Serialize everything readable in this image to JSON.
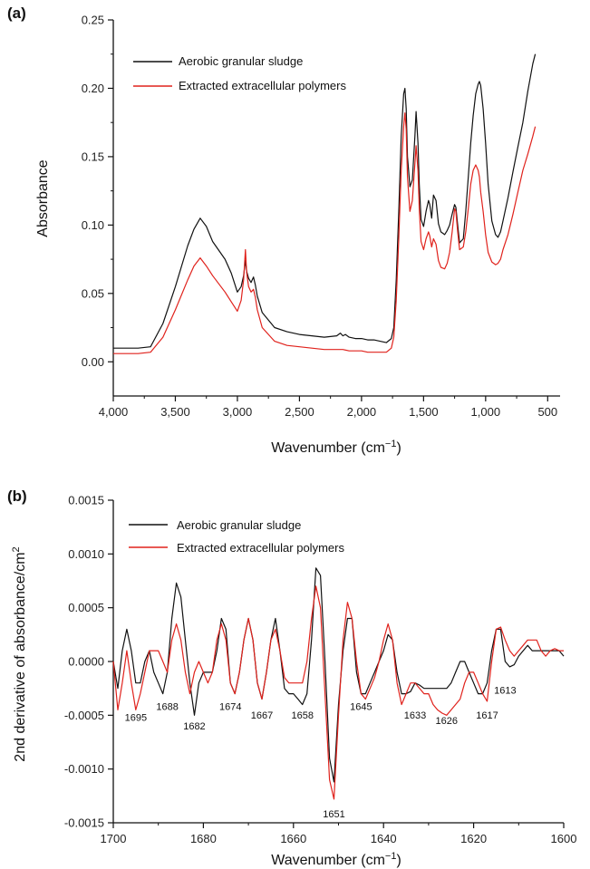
{
  "chart_data": [
    {
      "panel_label": "(a)",
      "type": "line",
      "xlabel": "Wavenumber (cm",
      "xlabel_sup": "−1",
      "xlabel_end": ")",
      "ylabel": "Absorbance",
      "xlim": [
        4000,
        400
      ],
      "ylim": [
        -0.025,
        0.25
      ],
      "x_ticks": [
        4000,
        3500,
        3000,
        2500,
        2000,
        1500,
        1000,
        500
      ],
      "x_tick_labels": [
        "4,000",
        "3,500",
        "3,000",
        "2,500",
        "2,000",
        "1,500",
        "1,000",
        "500"
      ],
      "y_ticks": [
        0.0,
        0.05,
        0.1,
        0.15,
        0.2,
        0.25
      ],
      "y_tick_labels": [
        "0.00",
        "0.05",
        "0.10",
        "0.15",
        "0.20",
        "0.25"
      ],
      "grid": false,
      "legend_position": "top-left",
      "series": [
        {
          "name": "Aerobic granular sludge",
          "color": "#111111",
          "x": [
            4000,
            3800,
            3700,
            3600,
            3500,
            3400,
            3350,
            3300,
            3250,
            3200,
            3100,
            3050,
            3000,
            2970,
            2950,
            2935,
            2925,
            2910,
            2890,
            2870,
            2855,
            2840,
            2800,
            2700,
            2600,
            2500,
            2400,
            2300,
            2200,
            2170,
            2150,
            2130,
            2100,
            2050,
            2000,
            1950,
            1900,
            1850,
            1800,
            1760,
            1740,
            1720,
            1700,
            1680,
            1660,
            1650,
            1640,
            1630,
            1610,
            1590,
            1570,
            1560,
            1545,
            1535,
            1520,
            1500,
            1480,
            1460,
            1450,
            1435,
            1420,
            1400,
            1380,
            1360,
            1330,
            1310,
            1290,
            1270,
            1250,
            1240,
            1225,
            1210,
            1180,
            1160,
            1140,
            1120,
            1100,
            1080,
            1060,
            1050,
            1040,
            1020,
            1000,
            980,
            950,
            920,
            900,
            880,
            860,
            820,
            780,
            740,
            700,
            660,
            620,
            600
          ],
          "y": [
            0.01,
            0.01,
            0.011,
            0.028,
            0.055,
            0.085,
            0.097,
            0.105,
            0.099,
            0.088,
            0.075,
            0.065,
            0.051,
            0.055,
            0.063,
            0.074,
            0.066,
            0.061,
            0.058,
            0.062,
            0.056,
            0.048,
            0.036,
            0.025,
            0.022,
            0.02,
            0.019,
            0.018,
            0.019,
            0.021,
            0.019,
            0.02,
            0.018,
            0.017,
            0.017,
            0.016,
            0.016,
            0.015,
            0.014,
            0.017,
            0.025,
            0.06,
            0.11,
            0.165,
            0.196,
            0.2,
            0.185,
            0.15,
            0.128,
            0.133,
            0.165,
            0.183,
            0.16,
            0.13,
            0.104,
            0.099,
            0.11,
            0.118,
            0.115,
            0.105,
            0.122,
            0.118,
            0.101,
            0.095,
            0.093,
            0.096,
            0.1,
            0.108,
            0.115,
            0.113,
            0.1,
            0.087,
            0.09,
            0.11,
            0.135,
            0.16,
            0.18,
            0.196,
            0.203,
            0.205,
            0.202,
            0.185,
            0.16,
            0.13,
            0.103,
            0.093,
            0.091,
            0.095,
            0.103,
            0.12,
            0.139,
            0.157,
            0.175,
            0.198,
            0.218,
            0.225
          ]
        },
        {
          "name": "Extracted extracellular polymers",
          "color": "#e0221c",
          "x": [
            4000,
            3800,
            3700,
            3600,
            3500,
            3400,
            3350,
            3300,
            3250,
            3200,
            3100,
            3050,
            3000,
            2970,
            2950,
            2935,
            2925,
            2910,
            2890,
            2870,
            2855,
            2840,
            2800,
            2700,
            2600,
            2500,
            2400,
            2300,
            2200,
            2150,
            2100,
            2050,
            2000,
            1950,
            1900,
            1850,
            1800,
            1760,
            1740,
            1720,
            1700,
            1680,
            1660,
            1650,
            1640,
            1630,
            1610,
            1590,
            1570,
            1560,
            1545,
            1535,
            1520,
            1500,
            1480,
            1460,
            1450,
            1435,
            1420,
            1400,
            1380,
            1360,
            1330,
            1310,
            1290,
            1270,
            1250,
            1240,
            1225,
            1210,
            1180,
            1160,
            1140,
            1120,
            1100,
            1080,
            1060,
            1050,
            1040,
            1020,
            1000,
            980,
            950,
            920,
            900,
            880,
            860,
            820,
            780,
            740,
            700,
            660,
            620,
            600
          ],
          "y": [
            0.006,
            0.006,
            0.007,
            0.018,
            0.038,
            0.06,
            0.07,
            0.076,
            0.07,
            0.063,
            0.051,
            0.044,
            0.037,
            0.045,
            0.06,
            0.082,
            0.065,
            0.055,
            0.051,
            0.053,
            0.047,
            0.038,
            0.025,
            0.015,
            0.012,
            0.011,
            0.01,
            0.009,
            0.009,
            0.009,
            0.008,
            0.008,
            0.008,
            0.007,
            0.007,
            0.007,
            0.007,
            0.01,
            0.018,
            0.045,
            0.09,
            0.14,
            0.172,
            0.182,
            0.17,
            0.135,
            0.11,
            0.118,
            0.145,
            0.158,
            0.14,
            0.112,
            0.088,
            0.082,
            0.09,
            0.095,
            0.092,
            0.084,
            0.09,
            0.086,
            0.074,
            0.069,
            0.068,
            0.072,
            0.08,
            0.095,
            0.112,
            0.11,
            0.095,
            0.082,
            0.084,
            0.095,
            0.112,
            0.13,
            0.14,
            0.144,
            0.14,
            0.135,
            0.124,
            0.11,
            0.093,
            0.08,
            0.073,
            0.071,
            0.072,
            0.075,
            0.082,
            0.093,
            0.108,
            0.124,
            0.14,
            0.152,
            0.165,
            0.172
          ]
        }
      ]
    },
    {
      "panel_label": "(b)",
      "type": "line",
      "xlabel": "Wavenumber (cm",
      "xlabel_sup": "−1",
      "xlabel_end": ")",
      "ylabel": "2nd derivative of absorbance/cm",
      "ylabel_sup": "2",
      "xlim": [
        1700,
        1600
      ],
      "ylim": [
        -0.0015,
        0.0015
      ],
      "x_ticks": [
        1700,
        1680,
        1660,
        1640,
        1620,
        1600
      ],
      "x_tick_labels": [
        "1700",
        "1680",
        "1660",
        "1640",
        "1620",
        "1600"
      ],
      "y_ticks": [
        -0.0015,
        -0.001,
        -0.0005,
        0.0,
        0.0005,
        0.001,
        0.0015
      ],
      "y_tick_labels": [
        "-0.0015",
        "-0.0010",
        "-0.0005",
        "0.0000",
        "0.0005",
        "0.0010",
        "0.0015"
      ],
      "grid": false,
      "legend_position": "top-left",
      "annotations": [
        {
          "text": "1695",
          "x": 1695,
          "y": -0.00055
        },
        {
          "text": "1688",
          "x": 1688,
          "y": -0.00045
        },
        {
          "text": "1682",
          "x": 1682,
          "y": -0.00063
        },
        {
          "text": "1674",
          "x": 1674,
          "y": -0.00045
        },
        {
          "text": "1667",
          "x": 1667,
          "y": -0.00053
        },
        {
          "text": "1658",
          "x": 1658,
          "y": -0.00053
        },
        {
          "text": "1651",
          "x": 1651,
          "y": -0.00145
        },
        {
          "text": "1645",
          "x": 1645,
          "y": -0.00045
        },
        {
          "text": "1633",
          "x": 1633,
          "y": -0.00053
        },
        {
          "text": "1626",
          "x": 1626,
          "y": -0.00058
        },
        {
          "text": "1617",
          "x": 1617,
          "y": -0.00053
        },
        {
          "text": "1613",
          "x": 1613,
          "y": -0.0003
        }
      ],
      "series": [
        {
          "name": "Aerobic granular sludge",
          "color": "#111111",
          "x": [
            1700,
            1699,
            1698,
            1697,
            1696,
            1695,
            1694,
            1693,
            1692,
            1691,
            1690,
            1689,
            1688,
            1687,
            1686,
            1685,
            1684,
            1683,
            1682,
            1681,
            1680,
            1679,
            1678,
            1677,
            1676,
            1675,
            1674,
            1673,
            1672,
            1671,
            1670,
            1669,
            1668,
            1667,
            1666,
            1665,
            1664,
            1663,
            1662,
            1661,
            1660,
            1659,
            1658,
            1657,
            1656,
            1655,
            1654,
            1653,
            1652,
            1651,
            1650,
            1649,
            1648,
            1647,
            1646,
            1645,
            1644,
            1643,
            1642,
            1641,
            1640,
            1639,
            1638,
            1637,
            1636,
            1635,
            1634,
            1633,
            1632,
            1631,
            1630,
            1629,
            1628,
            1627,
            1626,
            1625,
            1624,
            1623,
            1622,
            1621,
            1620,
            1619,
            1618,
            1617,
            1616,
            1615,
            1614,
            1613,
            1612,
            1611,
            1610,
            1609,
            1608,
            1607,
            1606,
            1605,
            1604,
            1603,
            1602,
            1601,
            1600
          ],
          "y": [
            0.0,
            -0.00025,
            0.0001,
            0.0003,
            0.0001,
            -0.0002,
            -0.0002,
            0.0,
            0.0001,
            -0.0001,
            -0.0002,
            -0.0003,
            -0.0001,
            0.0004,
            0.00073,
            0.0006,
            0.0002,
            -0.0002,
            -0.0005,
            -0.0002,
            -0.0001,
            -0.0001,
            -0.0001,
            0.0001,
            0.0004,
            0.0003,
            -0.0002,
            -0.0003,
            -0.0001,
            0.0002,
            0.0004,
            0.0002,
            -0.0002,
            -0.00035,
            -0.0001,
            0.0002,
            0.0004,
            0.0001,
            -0.00025,
            -0.0003,
            -0.0003,
            -0.00035,
            -0.0004,
            -0.0003,
            0.0002,
            0.00087,
            0.0008,
            0.0,
            -0.0009,
            -0.00112,
            -0.0004,
            0.0001,
            0.0004,
            0.0004,
            -0.0001,
            -0.0003,
            -0.0003,
            -0.0002,
            -0.0001,
            0.0,
            0.0001,
            0.00025,
            0.0002,
            -0.0001,
            -0.0003,
            -0.0003,
            -0.00028,
            -0.0002,
            -0.00022,
            -0.00025,
            -0.00025,
            -0.00025,
            -0.00025,
            -0.00025,
            -0.00025,
            -0.0002,
            -0.0001,
            0.0,
            0.0,
            -0.0001,
            -0.0002,
            -0.0003,
            -0.0003,
            -0.0002,
            0.0001,
            0.0003,
            0.0003,
            0.0,
            -5e-05,
            -3e-05,
            5e-05,
            0.0001,
            0.00015,
            0.0001,
            0.0001,
            0.0001,
            0.0001,
            0.0001,
            0.0001,
            0.0001,
            5e-05
          ]
        },
        {
          "name": "Extracted extracellular polymers",
          "color": "#e0221c",
          "x": [
            1700,
            1699,
            1698,
            1697,
            1696,
            1695,
            1694,
            1693,
            1692,
            1691,
            1690,
            1689,
            1688,
            1687,
            1686,
            1685,
            1684,
            1683,
            1682,
            1681,
            1680,
            1679,
            1678,
            1677,
            1676,
            1675,
            1674,
            1673,
            1672,
            1671,
            1670,
            1669,
            1668,
            1667,
            1666,
            1665,
            1664,
            1663,
            1662,
            1661,
            1660,
            1659,
            1658,
            1657,
            1656,
            1655,
            1654,
            1653,
            1652,
            1651,
            1650,
            1649,
            1648,
            1647,
            1646,
            1645,
            1644,
            1643,
            1642,
            1641,
            1640,
            1639,
            1638,
            1637,
            1636,
            1635,
            1634,
            1633,
            1632,
            1631,
            1630,
            1629,
            1628,
            1627,
            1626,
            1625,
            1624,
            1623,
            1622,
            1621,
            1620,
            1619,
            1618,
            1617,
            1616,
            1615,
            1614,
            1613,
            1612,
            1611,
            1610,
            1609,
            1608,
            1607,
            1606,
            1605,
            1604,
            1603,
            1602,
            1601,
            1600
          ],
          "y": [
            0.0,
            -0.00045,
            -0.0002,
            0.0001,
            -0.0002,
            -0.00045,
            -0.0003,
            -0.0001,
            0.0001,
            0.0001,
            0.0001,
            0.0,
            -0.0001,
            0.0002,
            0.00035,
            0.0002,
            -0.0001,
            -0.0003,
            -0.0001,
            0.0,
            -0.0001,
            -0.0002,
            -0.0001,
            0.0002,
            0.00035,
            0.0002,
            -0.0002,
            -0.0003,
            -0.0001,
            0.0002,
            0.0004,
            0.0002,
            -0.0002,
            -0.00035,
            -0.0001,
            0.0002,
            0.0003,
            0.0001,
            -0.00015,
            -0.0002,
            -0.0002,
            -0.0002,
            -0.0002,
            0.0,
            0.0004,
            0.0007,
            0.0005,
            -0.0003,
            -0.0011,
            -0.00128,
            -0.0005,
            0.0002,
            0.00055,
            0.0004,
            0.0,
            -0.0003,
            -0.00035,
            -0.00025,
            -0.00015,
            0.0,
            0.0002,
            0.00035,
            0.0002,
            -0.0002,
            -0.0004,
            -0.0003,
            -0.0002,
            -0.0002,
            -0.00025,
            -0.0003,
            -0.0003,
            -0.0004,
            -0.00045,
            -0.00048,
            -0.0005,
            -0.00045,
            -0.0004,
            -0.00035,
            -0.0002,
            -0.0001,
            -0.0001,
            -0.0002,
            -0.0003,
            -0.00037,
            0.0,
            0.0003,
            0.00032,
            0.0002,
            0.0001,
            5e-05,
            0.0001,
            0.00015,
            0.0002,
            0.0002,
            0.0002,
            0.0001,
            5e-05,
            0.0001,
            0.00012,
            0.0001,
            0.0001
          ]
        }
      ]
    }
  ]
}
